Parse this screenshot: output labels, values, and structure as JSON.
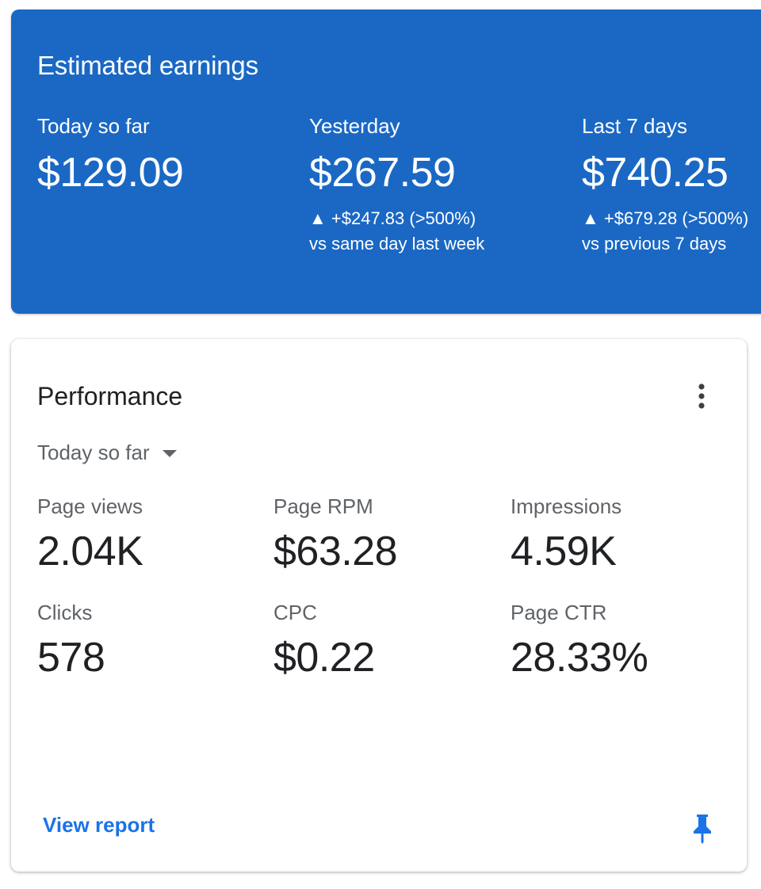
{
  "earnings": {
    "title": "Estimated earnings",
    "background_color": "#1a68c4",
    "columns": [
      {
        "label": "Today so far",
        "value": "$129.09"
      },
      {
        "label": "Yesterday",
        "value": "$267.59",
        "delta": "▲ +$247.83 (>500%)",
        "compare": "vs same day last week"
      },
      {
        "label": "Last 7 days",
        "value": "$740.25",
        "delta": "▲ +$679.28 (>500%)",
        "compare": "vs previous 7 days"
      }
    ]
  },
  "performance": {
    "title": "Performance",
    "more_icon": "more-vert-icon",
    "range_selected": "Today so far",
    "metrics": [
      {
        "label": "Page views",
        "value": "2.04K"
      },
      {
        "label": "Page RPM",
        "value": "$63.28"
      },
      {
        "label": "Impressions",
        "value": "4.59K"
      },
      {
        "label": "Clicks",
        "value": "578"
      },
      {
        "label": "CPC",
        "value": "$0.22"
      },
      {
        "label": "Page CTR",
        "value": "28.33%"
      }
    ],
    "view_report_label": "View report",
    "pin_icon": "pin-icon",
    "link_color": "#1a73e8"
  }
}
